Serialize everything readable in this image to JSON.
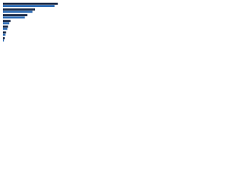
{
  "chart_data": {
    "type": "hbar",
    "categories": [
      null,
      null,
      null,
      null,
      null,
      null,
      null
    ],
    "series": [
      {
        "color": "#1b2a47",
        "values": [
          85,
          50,
          38,
          12,
          8,
          5,
          3
        ]
      },
      {
        "color": "#2f6db5",
        "values": [
          80,
          46,
          34,
          10,
          7,
          4,
          2
        ]
      }
    ],
    "xlim": [
      0,
      100
    ]
  }
}
